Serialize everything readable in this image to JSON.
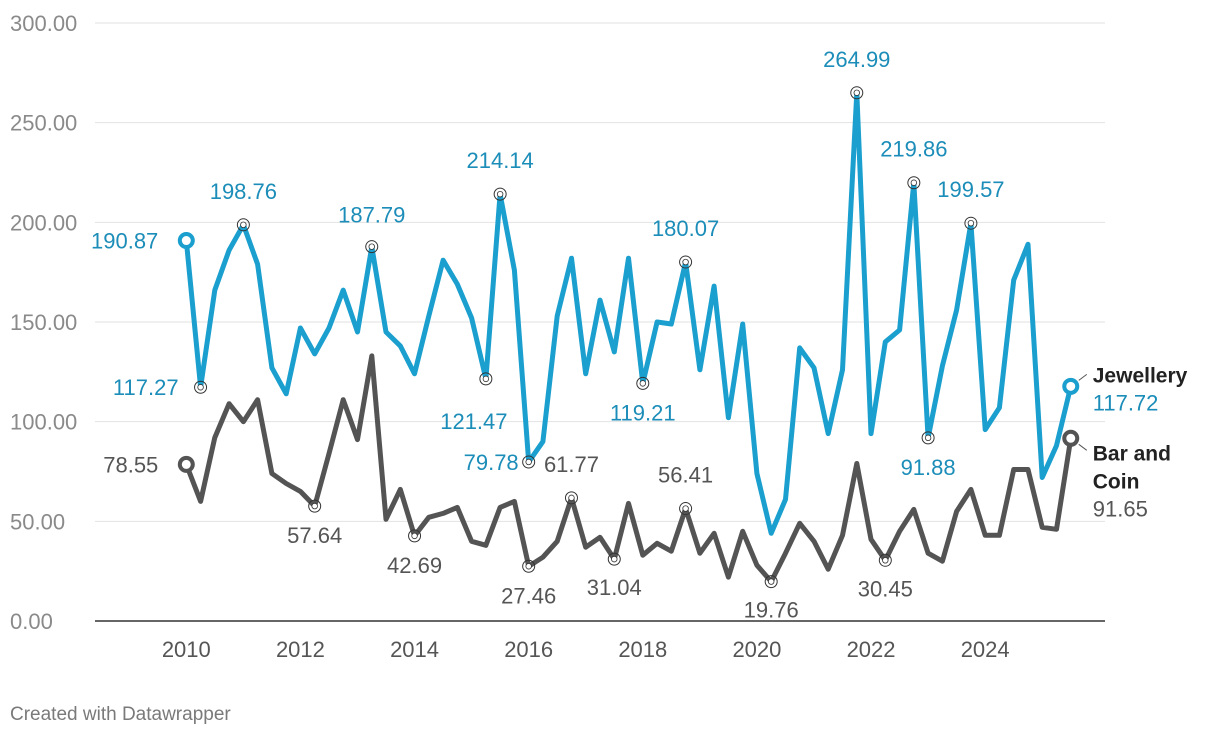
{
  "chart_data": {
    "type": "line",
    "title": "",
    "xlabel": "",
    "ylabel": "",
    "ylim": [
      0,
      300
    ],
    "xlim": [
      2008.4,
      2026.1
    ],
    "y_ticks": [
      "0.00",
      "50.00",
      "100.00",
      "150.00",
      "200.00",
      "250.00",
      "300.00"
    ],
    "x_ticks": [
      "2010",
      "2012",
      "2014",
      "2016",
      "2018",
      "2020",
      "2022",
      "2024"
    ],
    "grid": true,
    "legend": "line-end labels",
    "series": [
      {
        "name": "Jewellery",
        "color": "#1a9fce",
        "label_color": "#1b8db8",
        "x": [
          2010.0,
          2010.25,
          2010.5,
          2010.75,
          2011.0,
          2011.25,
          2011.5,
          2011.75,
          2012.0,
          2012.25,
          2012.5,
          2012.75,
          2013.0,
          2013.25,
          2013.5,
          2013.75,
          2014.0,
          2014.25,
          2014.5,
          2014.75,
          2015.0,
          2015.25,
          2015.5,
          2015.75,
          2016.0,
          2016.25,
          2016.5,
          2016.75,
          2017.0,
          2017.25,
          2017.5,
          2017.75,
          2018.0,
          2018.25,
          2018.5,
          2018.75,
          2019.0,
          2019.25,
          2019.5,
          2019.75,
          2020.0,
          2020.25,
          2020.5,
          2020.75,
          2021.0,
          2021.25,
          2021.5,
          2021.75,
          2022.0,
          2022.25,
          2022.5,
          2022.75,
          2023.0,
          2023.25,
          2023.5,
          2023.75,
          2024.0,
          2024.25,
          2024.5,
          2024.75,
          2025.0,
          2025.25,
          2025.5
        ],
        "values": [
          190.87,
          117.27,
          166,
          186,
          198.76,
          179,
          127,
          114,
          147,
          134,
          147,
          166,
          145,
          187.79,
          145,
          138,
          124,
          153,
          181,
          169,
          152,
          121.47,
          214.14,
          176,
          79.78,
          90,
          153,
          182,
          124,
          161,
          135,
          182,
          119.21,
          150,
          149,
          180.07,
          126,
          168,
          102,
          149,
          74,
          44,
          61,
          137,
          127,
          94,
          126,
          264.99,
          94,
          140,
          146,
          219.86,
          91.88,
          128,
          156,
          199.57,
          96,
          107,
          171,
          189,
          72,
          88,
          117.72
        ]
      },
      {
        "name": "Bar and Coin",
        "color": "#545454",
        "label_color": "#555555",
        "x": [
          2010.0,
          2010.25,
          2010.5,
          2010.75,
          2011.0,
          2011.25,
          2011.5,
          2011.75,
          2012.0,
          2012.25,
          2012.5,
          2012.75,
          2013.0,
          2013.25,
          2013.5,
          2013.75,
          2014.0,
          2014.25,
          2014.5,
          2014.75,
          2015.0,
          2015.25,
          2015.5,
          2015.75,
          2016.0,
          2016.25,
          2016.5,
          2016.75,
          2017.0,
          2017.25,
          2017.5,
          2017.75,
          2018.0,
          2018.25,
          2018.5,
          2018.75,
          2019.0,
          2019.25,
          2019.5,
          2019.75,
          2020.0,
          2020.25,
          2020.5,
          2020.75,
          2021.0,
          2021.25,
          2021.5,
          2021.75,
          2022.0,
          2022.25,
          2022.5,
          2022.75,
          2023.0,
          2023.25,
          2023.5,
          2023.75,
          2024.0,
          2024.25,
          2024.5,
          2024.75,
          2025.0,
          2025.25,
          2025.5
        ],
        "values": [
          78.55,
          60,
          92,
          109,
          100,
          111,
          74,
          69,
          65,
          57.64,
          84,
          111,
          91,
          133,
          51,
          66,
          42.69,
          52,
          54,
          57,
          40,
          38,
          57,
          60,
          27.46,
          32,
          40,
          61.77,
          37,
          42,
          31.04,
          59,
          33,
          39,
          35,
          56.41,
          34,
          44,
          22,
          45,
          28,
          19.76,
          34,
          49,
          40,
          26,
          43,
          79,
          41,
          30.45,
          45,
          56,
          34,
          30,
          55,
          66,
          43,
          43,
          76,
          76,
          47,
          46,
          91.65
        ]
      }
    ],
    "labels": [
      {
        "series": 0,
        "x": 2010.0,
        "value": 190.87,
        "text": "190.87"
      },
      {
        "series": 0,
        "x": 2010.25,
        "value": 117.27,
        "text": "117.27"
      },
      {
        "series": 0,
        "x": 2011.0,
        "value": 198.76,
        "text": "198.76"
      },
      {
        "series": 0,
        "x": 2013.25,
        "value": 187.79,
        "text": "187.79"
      },
      {
        "series": 0,
        "x": 2015.25,
        "value": 121.47,
        "text": "121.47"
      },
      {
        "series": 0,
        "x": 2015.5,
        "value": 214.14,
        "text": "214.14"
      },
      {
        "series": 0,
        "x": 2016.0,
        "value": 79.78,
        "text": "79.78"
      },
      {
        "series": 0,
        "x": 2018.0,
        "value": 119.21,
        "text": "119.21"
      },
      {
        "series": 0,
        "x": 2018.75,
        "value": 180.07,
        "text": "180.07"
      },
      {
        "series": 0,
        "x": 2021.75,
        "value": 264.99,
        "text": "264.99"
      },
      {
        "series": 0,
        "x": 2022.75,
        "value": 219.86,
        "text": "219.86"
      },
      {
        "series": 0,
        "x": 2023.0,
        "value": 91.88,
        "text": "91.88"
      },
      {
        "series": 0,
        "x": 2023.75,
        "value": 199.57,
        "text": "199.57"
      },
      {
        "series": 0,
        "x": 2025.5,
        "value": 117.72,
        "text": "117.72"
      },
      {
        "series": 1,
        "x": 2010.0,
        "value": 78.55,
        "text": "78.55"
      },
      {
        "series": 1,
        "x": 2012.25,
        "value": 57.64,
        "text": "57.64"
      },
      {
        "series": 1,
        "x": 2014.0,
        "value": 42.69,
        "text": "42.69"
      },
      {
        "series": 1,
        "x": 2016.0,
        "value": 27.46,
        "text": "27.46"
      },
      {
        "series": 1,
        "x": 2016.75,
        "value": 61.77,
        "text": "61.77"
      },
      {
        "series": 1,
        "x": 2017.5,
        "value": 31.04,
        "text": "31.04"
      },
      {
        "series": 1,
        "x": 2018.75,
        "value": 56.41,
        "text": "56.41"
      },
      {
        "series": 1,
        "x": 2020.25,
        "value": 19.76,
        "text": "19.76"
      },
      {
        "series": 1,
        "x": 2022.25,
        "value": 30.45,
        "text": "30.45"
      },
      {
        "series": 1,
        "x": 2025.5,
        "value": 91.65,
        "text": "91.65"
      }
    ],
    "end_names": [
      {
        "series": 0,
        "lines": [
          "Jewellery"
        ]
      },
      {
        "series": 1,
        "lines": [
          "Bar and",
          "Coin"
        ]
      }
    ]
  },
  "footer": {
    "credit": "Created with Datawrapper"
  }
}
